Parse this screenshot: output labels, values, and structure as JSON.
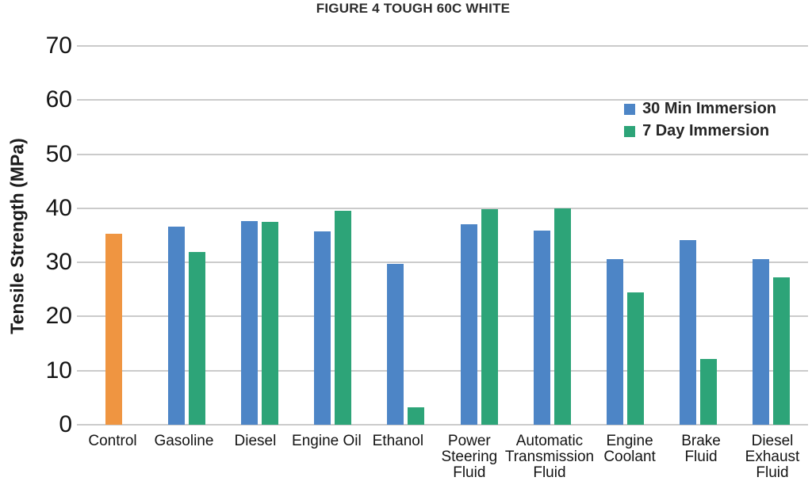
{
  "chart_data": {
    "type": "bar",
    "title": "FIGURE 4 TOUGH 60C WHITE",
    "xlabel": "",
    "ylabel": "Tensile Strength (MPa)",
    "ylim": [
      0,
      70
    ],
    "yticks": [
      0,
      10,
      20,
      30,
      40,
      50,
      60,
      70
    ],
    "grid": true,
    "legend_position": "top-right",
    "categories": [
      "Control",
      "Gasoline",
      "Diesel",
      "Engine Oil",
      "Ethanol",
      "Power Steering Fluid",
      "Automatic Transmission Fluid",
      "Engine Coolant",
      "Brake Fluid",
      "Diesel Exhaust Fluid"
    ],
    "category_lines": [
      [
        "Control"
      ],
      [
        "Gasoline"
      ],
      [
        "Diesel"
      ],
      [
        "Engine Oil"
      ],
      [
        "Ethanol"
      ],
      [
        "Power",
        "Steering",
        "Fluid"
      ],
      [
        "Automatic",
        "Transmission",
        "Fluid"
      ],
      [
        "Engine",
        "Coolant"
      ],
      [
        "Brake",
        "Fluid"
      ],
      [
        "Diesel",
        "Exhaust",
        "Fluid"
      ]
    ],
    "control_bar": {
      "category": "Control",
      "value": 35.3,
      "color": "#ef9541"
    },
    "series": [
      {
        "name": "30 Min Immersion",
        "color": "#4d85c6",
        "values": [
          null,
          36.6,
          37.7,
          35.7,
          29.7,
          37.0,
          35.9,
          30.6,
          34.1,
          30.6
        ]
      },
      {
        "name": "7 Day Immersion",
        "color": "#2da478",
        "values": [
          null,
          32.0,
          37.5,
          39.6,
          3.2,
          39.8,
          40.0,
          24.5,
          12.2,
          27.2
        ]
      }
    ],
    "colors": {
      "gridline": "#cbcbcb",
      "blue_series": "#4d85c6",
      "green_series": "#2da478",
      "control_orange": "#ef9541"
    }
  }
}
